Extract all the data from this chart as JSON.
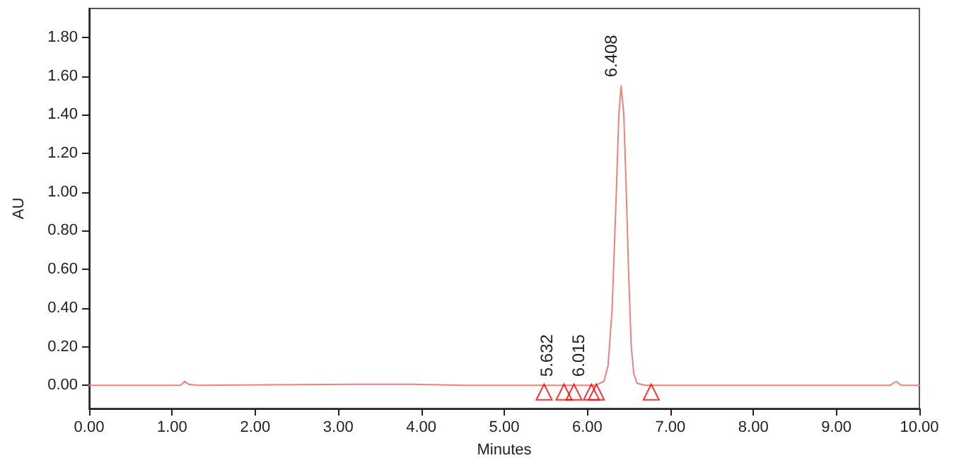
{
  "chart_data": {
    "type": "line",
    "xlabel": "Minutes",
    "ylabel": "AU",
    "xlim": [
      0,
      10
    ],
    "xticks": [
      {
        "value": 0,
        "label": "0.00"
      },
      {
        "value": 1,
        "label": "1.00"
      },
      {
        "value": 2,
        "label": "2.00"
      },
      {
        "value": 3,
        "label": "3.00"
      },
      {
        "value": 4,
        "label": "4.00"
      },
      {
        "value": 5,
        "label": "5.00"
      },
      {
        "value": 6,
        "label": "6.00"
      },
      {
        "value": 7,
        "label": "7.00"
      },
      {
        "value": 8,
        "label": "8.00"
      },
      {
        "value": 9,
        "label": "9.00"
      },
      {
        "value": 10,
        "label": "10.00"
      }
    ],
    "ylim": [
      -0.12,
      1.95
    ],
    "yticks": [
      {
        "value": 0,
        "label": "0.00"
      },
      {
        "value": 0.2,
        "label": "0.20"
      },
      {
        "value": 0.4,
        "label": "0.40"
      },
      {
        "value": 0.6,
        "label": "0.60"
      },
      {
        "value": 0.8,
        "label": "0.80"
      },
      {
        "value": 1,
        "label": "1.00"
      },
      {
        "value": 1.2,
        "label": "1.20"
      },
      {
        "value": 1.4,
        "label": "1.40"
      },
      {
        "value": 1.6,
        "label": "1.60"
      },
      {
        "value": 1.8,
        "label": "1.80"
      }
    ],
    "grid": false,
    "marker": "none",
    "line_style": "solid",
    "series": [
      {
        "color": "#f08080",
        "x": [
          0,
          1.1,
          1.15,
          1.2,
          1.3,
          2.5,
          3.2,
          3.9,
          4.5,
          5.5,
          6.1,
          6.2,
          6.25,
          6.3,
          6.35,
          6.38,
          6.408,
          6.44,
          6.47,
          6.5,
          6.53,
          6.56,
          6.6,
          6.7,
          9.65,
          9.72,
          9.78,
          10
        ],
        "values": [
          0,
          0,
          0.02,
          0.005,
          0,
          0.003,
          0.005,
          0.005,
          0,
          0,
          0,
          0.02,
          0.1,
          0.4,
          1.0,
          1.4,
          1.55,
          1.4,
          1.0,
          0.55,
          0.2,
          0.06,
          0.01,
          0,
          0,
          0.02,
          0,
          0
        ]
      },
      {
        "type": "scatter",
        "marker": "triangle",
        "color": "#ff0000",
        "x": [
          5.48,
          5.72,
          5.84,
          6.05,
          6.11,
          6.77
        ],
        "values": [
          -0.035,
          -0.035,
          -0.035,
          -0.035,
          -0.035,
          -0.035
        ]
      }
    ],
    "annotations": [
      {
        "text": "5.632",
        "x": 5.632,
        "y": 0.0
      },
      {
        "text": "6.015",
        "x": 6.015,
        "y": 0.0
      },
      {
        "text": "6.408",
        "x": 6.408,
        "y": 1.55
      }
    ]
  }
}
